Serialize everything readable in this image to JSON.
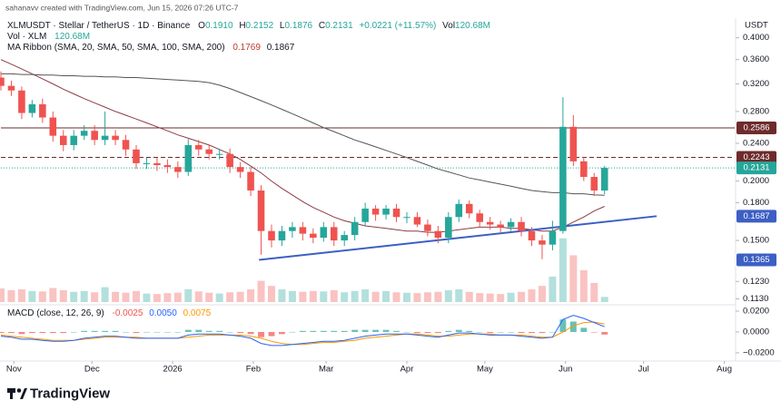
{
  "chart_data": {
    "type": "candlestick",
    "credit": "sahanavv created with TradingView.com, Jun 15, 2026 07:26 UTC-7",
    "symbol": "XLMUSDT · Stellar / TetherUS · 1D · Binance",
    "ohlc": [
      {
        "label": "O",
        "value": "0.1910"
      },
      {
        "label": "H",
        "value": "0.2152"
      },
      {
        "label": "L",
        "value": "0.1876"
      },
      {
        "label": "C",
        "value": "0.2131"
      }
    ],
    "change": "+0.0221 (+11.57%)",
    "volume_header": {
      "label": "Vol",
      "value": "120.68M"
    },
    "volume_title": "Vol · XLM",
    "volume_value": "120.68M",
    "ma_title": "MA Ribbon (SMA, 20, SMA, 50, SMA, 100, SMA, 200)",
    "macd_title": "MACD (close, 12, 26, 9)",
    "macd_values": [
      {
        "value": "-0.0025",
        "color": "#ef5350"
      },
      {
        "value": "0.0050",
        "color": "#2962ff"
      },
      {
        "value": "0.0075",
        "color": "#ff9800"
      }
    ],
    "currency": "USDT",
    "brand": "TradingView",
    "log_y": true,
    "up_color": "#26a69a",
    "down_color": "#ef5350",
    "xlim": [
      0,
      70.5
    ],
    "xticks": [
      {
        "value": 1.25,
        "label": "Nov"
      },
      {
        "value": 8.75,
        "label": "Dec"
      },
      {
        "value": 16.5,
        "label": "2026"
      },
      {
        "value": 24.25,
        "label": "Feb"
      },
      {
        "value": 31.25,
        "label": "Mar"
      },
      {
        "value": 39,
        "label": "Apr"
      },
      {
        "value": 46.5,
        "label": "May"
      },
      {
        "value": 54.25,
        "label": "Jun"
      },
      {
        "value": 61.75,
        "label": "Jul"
      },
      {
        "value": 69.5,
        "label": "Aug"
      }
    ],
    "ylim": [
      0.107,
      0.44
    ],
    "yticks": [
      {
        "value": 0.4,
        "label": "0.4000"
      },
      {
        "value": 0.36,
        "label": "0.3600"
      },
      {
        "value": 0.32,
        "label": "0.3200"
      },
      {
        "value": 0.28,
        "label": "0.2800"
      },
      {
        "value": 0.24,
        "label": "0.2400"
      },
      {
        "value": 0.2,
        "label": "0.2000"
      },
      {
        "value": 0.18,
        "label": "0.1800"
      },
      {
        "value": 0.15,
        "label": "0.1500"
      },
      {
        "value": 0.123,
        "label": "0.1230"
      },
      {
        "value": 0.113,
        "label": "0.1130"
      }
    ],
    "open": [
      0.33,
      0.317,
      0.31,
      0.278,
      0.29,
      0.272,
      0.249,
      0.238,
      0.249,
      0.255,
      0.244,
      0.249,
      0.244,
      0.233,
      0.218,
      0.218,
      0.216,
      0.214,
      0.209,
      0.238,
      0.233,
      0.228,
      0.228,
      0.214,
      0.209,
      0.191,
      0.157,
      0.15,
      0.157,
      0.16,
      0.155,
      0.152,
      0.16,
      0.15,
      0.154,
      0.164,
      0.175,
      0.17,
      0.175,
      0.168,
      0.168,
      0.162,
      0.157,
      0.152,
      0.168,
      0.179,
      0.171,
      0.164,
      0.162,
      0.16,
      0.164,
      0.157,
      0.15,
      0.147,
      0.157,
      0.26,
      0.22,
      0.204,
      0.191
    ],
    "high": [
      0.34,
      0.325,
      0.316,
      0.296,
      0.298,
      0.28,
      0.256,
      0.256,
      0.262,
      0.262,
      0.28,
      0.256,
      0.25,
      0.238,
      0.224,
      0.224,
      0.222,
      0.22,
      0.245,
      0.244,
      0.238,
      0.234,
      0.234,
      0.219,
      0.214,
      0.196,
      0.162,
      0.161,
      0.164,
      0.164,
      0.159,
      0.164,
      0.164,
      0.157,
      0.168,
      0.18,
      0.178,
      0.178,
      0.179,
      0.172,
      0.172,
      0.166,
      0.161,
      0.172,
      0.183,
      0.182,
      0.174,
      0.168,
      0.165,
      0.167,
      0.168,
      0.16,
      0.154,
      0.165,
      0.3,
      0.275,
      0.225,
      0.208,
      0.2152
    ],
    "low": [
      0.31,
      0.302,
      0.27,
      0.272,
      0.265,
      0.242,
      0.231,
      0.232,
      0.244,
      0.238,
      0.238,
      0.238,
      0.226,
      0.212,
      0.212,
      0.21,
      0.208,
      0.203,
      0.205,
      0.226,
      0.222,
      0.222,
      0.208,
      0.203,
      0.186,
      0.14,
      0.145,
      0.146,
      0.152,
      0.15,
      0.148,
      0.149,
      0.146,
      0.146,
      0.15,
      0.161,
      0.165,
      0.166,
      0.164,
      0.163,
      0.16,
      0.153,
      0.148,
      0.148,
      0.164,
      0.167,
      0.16,
      0.158,
      0.156,
      0.157,
      0.153,
      0.146,
      0.137,
      0.143,
      0.155,
      0.215,
      0.2,
      0.186,
      0.1876
    ],
    "close": [
      0.317,
      0.31,
      0.278,
      0.29,
      0.272,
      0.249,
      0.238,
      0.249,
      0.255,
      0.244,
      0.249,
      0.244,
      0.233,
      0.218,
      0.218,
      0.216,
      0.214,
      0.209,
      0.238,
      0.233,
      0.228,
      0.228,
      0.214,
      0.209,
      0.191,
      0.157,
      0.15,
      0.157,
      0.16,
      0.155,
      0.152,
      0.16,
      0.15,
      0.154,
      0.164,
      0.175,
      0.17,
      0.175,
      0.168,
      0.168,
      0.162,
      0.157,
      0.152,
      0.168,
      0.179,
      0.171,
      0.164,
      0.162,
      0.16,
      0.164,
      0.157,
      0.15,
      0.147,
      0.157,
      0.26,
      0.22,
      0.204,
      0.191,
      0.2131
    ],
    "volume_lim": [
      0,
      1600
    ],
    "volume": [
      320,
      280,
      300,
      260,
      250,
      330,
      280,
      240,
      260,
      230,
      350,
      240,
      220,
      260,
      200,
      190,
      210,
      220,
      300,
      250,
      220,
      200,
      230,
      240,
      300,
      500,
      380,
      300,
      260,
      240,
      260,
      250,
      280,
      230,
      260,
      300,
      240,
      260,
      230,
      220,
      210,
      230,
      240,
      280,
      300,
      240,
      210,
      200,
      190,
      220,
      240,
      300,
      380,
      600,
      1500,
      1100,
      750,
      450,
      120.68
    ],
    "ma": [
      {
        "color": "#8e3b46",
        "values": [
          0.36,
          0.352,
          0.344,
          0.336,
          0.328,
          0.32,
          0.312,
          0.305,
          0.298,
          0.292,
          0.286,
          0.28,
          0.275,
          0.27,
          0.265,
          0.26,
          0.255,
          0.25,
          0.246,
          0.242,
          0.238,
          0.233,
          0.228,
          0.222,
          0.215,
          0.208,
          0.2,
          0.193,
          0.187,
          0.181,
          0.176,
          0.172,
          0.168,
          0.165,
          0.163,
          0.161,
          0.16,
          0.159,
          0.158,
          0.157,
          0.157,
          0.156,
          0.156,
          0.157,
          0.158,
          0.159,
          0.16,
          0.16,
          0.16,
          0.159,
          0.159,
          0.158,
          0.157,
          0.157,
          0.16,
          0.164,
          0.168,
          0.173,
          0.1769
        ]
      },
      {
        "color": "#555555",
        "values": [
          0.336,
          0.336,
          0.335,
          0.335,
          0.334,
          0.334,
          0.333,
          0.333,
          0.332,
          0.332,
          0.331,
          0.331,
          0.33,
          0.33,
          0.329,
          0.328,
          0.327,
          0.326,
          0.325,
          0.324,
          0.322,
          0.318,
          0.313,
          0.307,
          0.301,
          0.295,
          0.289,
          0.283,
          0.277,
          0.271,
          0.265,
          0.259,
          0.254,
          0.249,
          0.244,
          0.24,
          0.236,
          0.232,
          0.228,
          0.224,
          0.22,
          0.216,
          0.212,
          0.209,
          0.206,
          0.203,
          0.201,
          0.199,
          0.197,
          0.195,
          0.193,
          0.191,
          0.19,
          0.189,
          0.189,
          0.188,
          0.188,
          0.187,
          0.1867
        ]
      }
    ],
    "trendline": {
      "color": "#3d5fc4",
      "x": [
        24.8,
        63
      ],
      "y": [
        0.1365,
        0.1687
      ]
    },
    "price_tags": [
      {
        "value": 0.2586,
        "color": "#6e2b2b",
        "line": "solid"
      },
      {
        "value": 0.2243,
        "color": "#6e2b2b",
        "line": "dashed"
      },
      {
        "value": 0.2131,
        "color": "#26a69a",
        "line": "dotted"
      }
    ],
    "macd": {
      "ylim": [
        -0.0296,
        0.0252
      ],
      "yticks": [
        {
          "value": 0.02,
          "label": "0.0200"
        },
        {
          "value": 0,
          "label": "0.0000"
        },
        {
          "value": -0.02,
          "label": "−0.0200"
        }
      ],
      "line": {
        "color": "#2962ff",
        "values": [
          -0.004,
          -0.005,
          -0.007,
          -0.007,
          -0.008,
          -0.009,
          -0.009,
          -0.008,
          -0.006,
          -0.005,
          -0.004,
          -0.004,
          -0.005,
          -0.006,
          -0.006,
          -0.006,
          -0.006,
          -0.006,
          -0.003,
          -0.002,
          -0.002,
          -0.002,
          -0.003,
          -0.004,
          -0.006,
          -0.011,
          -0.013,
          -0.013,
          -0.012,
          -0.011,
          -0.01,
          -0.009,
          -0.009,
          -0.008,
          -0.006,
          -0.004,
          -0.003,
          -0.002,
          -0.002,
          -0.002,
          -0.003,
          -0.004,
          -0.005,
          -0.003,
          -0.001,
          -0.001,
          -0.002,
          -0.003,
          -0.003,
          -0.003,
          -0.004,
          -0.005,
          -0.006,
          -0.005,
          0.012,
          0.016,
          0.013,
          0.009,
          0.005
        ]
      },
      "signal": {
        "color": "#ff9800",
        "values": [
          -0.003,
          -0.004,
          -0.005,
          -0.006,
          -0.007,
          -0.008,
          -0.008,
          -0.008,
          -0.007,
          -0.006,
          -0.005,
          -0.005,
          -0.005,
          -0.005,
          -0.006,
          -0.006,
          -0.006,
          -0.006,
          -0.005,
          -0.004,
          -0.003,
          -0.003,
          -0.003,
          -0.003,
          -0.004,
          -0.006,
          -0.009,
          -0.011,
          -0.012,
          -0.012,
          -0.011,
          -0.01,
          -0.01,
          -0.009,
          -0.008,
          -0.006,
          -0.005,
          -0.004,
          -0.003,
          -0.002,
          -0.002,
          -0.003,
          -0.004,
          -0.004,
          -0.003,
          -0.002,
          -0.002,
          -0.002,
          -0.003,
          -0.003,
          -0.003,
          -0.004,
          -0.005,
          -0.005,
          0.0,
          0.006,
          0.009,
          0.0095,
          0.0075
        ]
      }
    }
  }
}
